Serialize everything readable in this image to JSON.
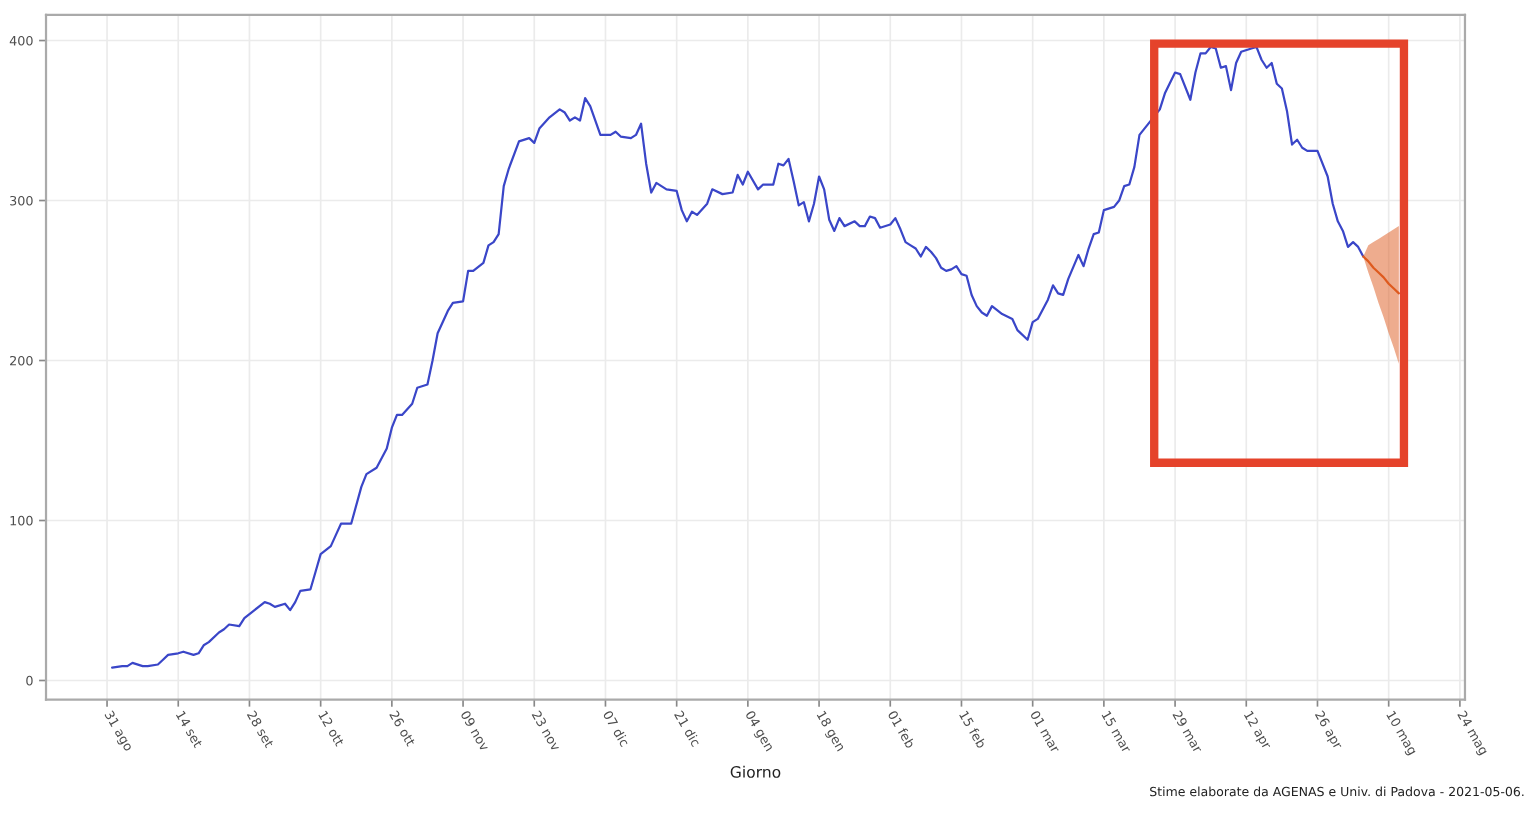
{
  "chart_data": {
    "type": "line",
    "xlabel": "Giorno",
    "annotations": [
      "Stime elaborate da AGENAS e Univ. di Padova - 2021-05-06."
    ],
    "series": [
      {
        "color": "#3a46c8",
        "x": [
          "2020-09-01",
          "2020-09-03",
          "2020-09-04",
          "2020-09-05",
          "2020-09-07",
          "2020-09-08",
          "2020-09-10",
          "2020-09-11",
          "2020-09-12",
          "2020-09-14",
          "2020-09-15",
          "2020-09-17",
          "2020-09-18",
          "2020-09-19",
          "2020-09-20",
          "2020-09-22",
          "2020-09-23",
          "2020-09-24",
          "2020-09-26",
          "2020-09-27",
          "2020-09-29",
          "2020-10-01",
          "2020-10-02",
          "2020-10-03",
          "2020-10-05",
          "2020-10-06",
          "2020-10-07",
          "2020-10-08",
          "2020-10-10",
          "2020-10-11",
          "2020-10-12",
          "2020-10-14",
          "2020-10-15",
          "2020-10-16",
          "2020-10-18",
          "2020-10-20",
          "2020-10-21",
          "2020-10-23",
          "2020-10-25",
          "2020-10-26",
          "2020-10-27",
          "2020-10-28",
          "2020-10-30",
          "2020-10-31",
          "2020-11-02",
          "2020-11-03",
          "2020-11-04",
          "2020-11-06",
          "2020-11-07",
          "2020-11-09",
          "2020-11-10",
          "2020-11-11",
          "2020-11-13",
          "2020-11-14",
          "2020-11-15",
          "2020-11-16",
          "2020-11-17",
          "2020-11-18",
          "2020-11-20",
          "2020-11-22",
          "2020-11-23",
          "2020-11-24",
          "2020-11-26",
          "2020-11-28",
          "2020-11-29",
          "2020-11-30",
          "2020-12-01",
          "2020-12-02",
          "2020-12-03",
          "2020-12-04",
          "2020-12-06",
          "2020-12-08",
          "2020-12-09",
          "2020-12-10",
          "2020-12-12",
          "2020-12-13",
          "2020-12-14",
          "2020-12-15",
          "2020-12-16",
          "2020-12-17",
          "2020-12-19",
          "2020-12-21",
          "2020-12-22",
          "2020-12-23",
          "2020-12-24",
          "2020-12-25",
          "2020-12-27",
          "2020-12-28",
          "2020-12-30",
          "2021-01-01",
          "2021-01-02",
          "2021-01-03",
          "2021-01-04",
          "2021-01-06",
          "2021-01-07",
          "2021-01-09",
          "2021-01-10",
          "2021-01-11",
          "2021-01-12",
          "2021-01-13",
          "2021-01-14",
          "2021-01-15",
          "2021-01-16",
          "2021-01-17",
          "2021-01-18",
          "2021-01-19",
          "2021-01-20",
          "2021-01-21",
          "2021-01-22",
          "2021-01-23",
          "2021-01-25",
          "2021-01-26",
          "2021-01-27",
          "2021-01-28",
          "2021-01-29",
          "2021-01-30",
          "2021-02-01",
          "2021-02-02",
          "2021-02-03",
          "2021-02-04",
          "2021-02-05",
          "2021-02-06",
          "2021-02-07",
          "2021-02-08",
          "2021-02-09",
          "2021-02-10",
          "2021-02-11",
          "2021-02-12",
          "2021-02-13",
          "2021-02-14",
          "2021-02-15",
          "2021-02-16",
          "2021-02-17",
          "2021-02-18",
          "2021-02-19",
          "2021-02-20",
          "2021-02-21",
          "2021-02-23",
          "2021-02-25",
          "2021-02-26",
          "2021-02-28",
          "2021-03-01",
          "2021-03-02",
          "2021-03-04",
          "2021-03-05",
          "2021-03-06",
          "2021-03-07",
          "2021-03-08",
          "2021-03-10",
          "2021-03-11",
          "2021-03-12",
          "2021-03-13",
          "2021-03-14",
          "2021-03-15",
          "2021-03-17",
          "2021-03-18",
          "2021-03-19",
          "2021-03-20",
          "2021-03-21",
          "2021-03-22",
          "2021-03-24",
          "2021-03-26",
          "2021-03-27",
          "2021-03-29",
          "2021-03-30",
          "2021-04-01",
          "2021-04-02",
          "2021-04-03",
          "2021-04-04",
          "2021-04-05",
          "2021-04-06",
          "2021-04-07",
          "2021-04-08",
          "2021-04-09",
          "2021-04-10",
          "2021-04-11",
          "2021-04-13",
          "2021-04-14",
          "2021-04-15",
          "2021-04-16",
          "2021-04-17",
          "2021-04-18",
          "2021-04-19",
          "2021-04-20",
          "2021-04-21",
          "2021-04-22",
          "2021-04-23",
          "2021-04-24",
          "2021-04-26",
          "2021-04-28",
          "2021-04-29",
          "2021-04-30",
          "2021-05-01",
          "2021-05-02",
          "2021-05-03",
          "2021-05-04",
          "2021-05-05"
        ],
        "values": [
          8,
          9,
          9,
          11,
          9,
          9,
          10,
          13,
          16,
          17,
          18,
          16,
          17,
          22,
          24,
          30,
          32,
          35,
          34,
          39,
          44,
          49,
          48,
          46,
          48,
          44,
          49,
          56,
          57,
          68,
          79,
          84,
          91,
          98,
          98,
          121,
          129,
          133,
          145,
          158,
          166,
          166,
          173,
          183,
          185,
          200,
          217,
          231,
          236,
          237,
          256,
          256,
          261,
          272,
          274,
          279,
          309,
          320,
          337,
          339,
          336,
          345,
          352,
          357,
          355,
          350,
          352,
          350,
          364,
          359,
          341,
          341,
          343,
          340,
          339,
          341,
          348,
          323,
          305,
          311,
          307,
          306,
          294,
          287,
          293,
          291,
          298,
          307,
          304,
          305,
          316,
          310,
          318,
          307,
          310,
          310,
          323,
          322,
          326,
          312,
          297,
          299,
          287,
          298,
          315,
          307,
          288,
          281,
          289,
          284,
          287,
          284,
          284,
          290,
          289,
          283,
          285,
          289,
          282,
          274,
          272,
          270,
          265,
          271,
          268,
          264,
          258,
          256,
          257,
          259,
          254,
          253,
          241,
          234,
          230,
          228,
          234,
          229,
          226,
          219,
          213,
          224,
          226,
          238,
          247,
          242,
          241,
          251,
          266,
          259,
          270,
          279,
          280,
          294,
          296,
          300,
          309,
          310,
          321,
          341,
          349,
          357,
          367,
          380,
          379,
          363,
          380,
          392,
          392,
          396,
          395,
          383,
          384,
          369,
          386,
          393,
          395,
          396,
          388,
          383,
          386,
          373,
          370,
          356,
          335,
          338,
          333,
          331,
          331,
          315,
          298,
          287,
          281,
          271,
          274,
          271,
          265
        ]
      },
      {
        "color": "#de5a1e",
        "x": [
          "2021-05-05",
          "2021-05-06",
          "2021-05-07",
          "2021-05-08",
          "2021-05-09",
          "2021-05-10",
          "2021-05-11",
          "2021-05-12"
        ],
        "values": [
          265,
          262,
          258,
          255,
          252,
          248,
          245,
          242
        ],
        "lower": [
          265,
          255,
          246,
          236,
          227,
          217,
          208,
          198
        ],
        "upper": [
          265,
          272,
          274,
          276,
          278,
          280,
          282,
          284
        ]
      }
    ],
    "xlim": [
      "2020-08-19",
      "2021-05-25"
    ],
    "xticks": [
      {
        "value": "2020-08-31",
        "label": "31 ago"
      },
      {
        "value": "2020-09-14",
        "label": "14 set"
      },
      {
        "value": "2020-09-28",
        "label": "28 set"
      },
      {
        "value": "2020-10-12",
        "label": "12 ott"
      },
      {
        "value": "2020-10-26",
        "label": "26 ott"
      },
      {
        "value": "2020-11-09",
        "label": "09 nov"
      },
      {
        "value": "2020-11-23",
        "label": "23 nov"
      },
      {
        "value": "2020-12-07",
        "label": "07 dic"
      },
      {
        "value": "2020-12-21",
        "label": "21 dic"
      },
      {
        "value": "2021-01-04",
        "label": "04 gen"
      },
      {
        "value": "2021-01-18",
        "label": "18 gen"
      },
      {
        "value": "2021-02-01",
        "label": "01 feb"
      },
      {
        "value": "2021-02-15",
        "label": "15 feb"
      },
      {
        "value": "2021-03-01",
        "label": "01 mar"
      },
      {
        "value": "2021-03-15",
        "label": "15 mar"
      },
      {
        "value": "2021-03-29",
        "label": "29 mar"
      },
      {
        "value": "2021-04-12",
        "label": "12 apr"
      },
      {
        "value": "2021-04-26",
        "label": "26 apr"
      },
      {
        "value": "2021-05-10",
        "label": "10 mag"
      },
      {
        "value": "2021-05-24",
        "label": "24 mag"
      }
    ],
    "ylim": [
      -12,
      416
    ],
    "yticks": [
      0,
      100,
      200,
      300,
      400
    ],
    "grid": true
  }
}
